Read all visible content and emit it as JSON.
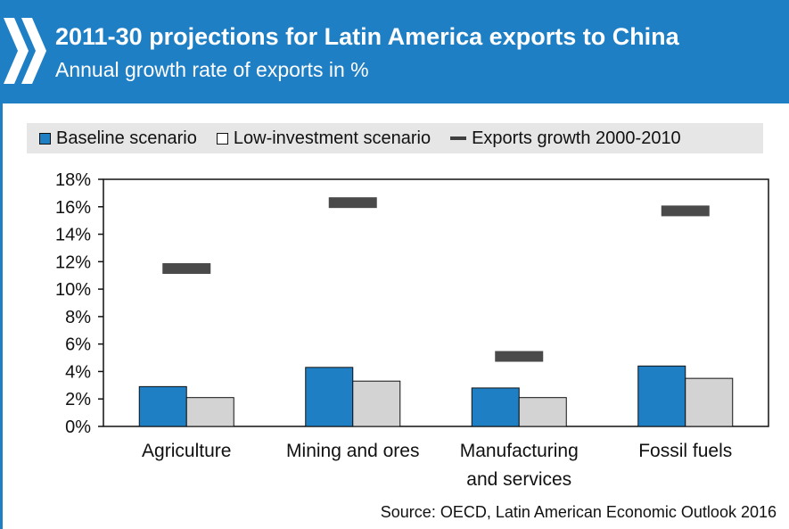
{
  "header": {
    "title": "2011-30 projections for Latin America exports to China",
    "subtitle": "Annual growth rate of exports in %"
  },
  "legend": {
    "baseline": "Baseline scenario",
    "low_investment": "Low-investment scenario",
    "exports_growth": "Exports growth 2000-2010"
  },
  "colors": {
    "brand": "#1f7fc4",
    "baseline": "#1f7fc4",
    "low_investment": "#d3d3d3",
    "exports_growth": "#4a4a4a"
  },
  "chart_data": {
    "type": "bar",
    "categories": [
      [
        "Agriculture"
      ],
      [
        "Mining and ores"
      ],
      [
        "Manufacturing",
        "and services"
      ],
      [
        "Fossil fuels"
      ]
    ],
    "series": [
      {
        "name": "Baseline scenario",
        "kind": "bar",
        "values": [
          2.9,
          4.3,
          2.8,
          4.4
        ]
      },
      {
        "name": "Low-investment scenario",
        "kind": "bar",
        "values": [
          2.1,
          3.3,
          2.1,
          3.5
        ]
      },
      {
        "name": "Exports growth 2000-2010",
        "kind": "marker",
        "values": [
          11.5,
          16.3,
          5.1,
          15.7
        ]
      }
    ],
    "ylim": [
      0,
      18
    ],
    "yticks": [
      "0%",
      "2%",
      "4%",
      "6%",
      "8%",
      "10%",
      "12%",
      "14%",
      "16%",
      "18%"
    ],
    "grid": false,
    "legend_position": "top"
  },
  "source": "Source: OECD, Latin American Economic Outlook 2016"
}
